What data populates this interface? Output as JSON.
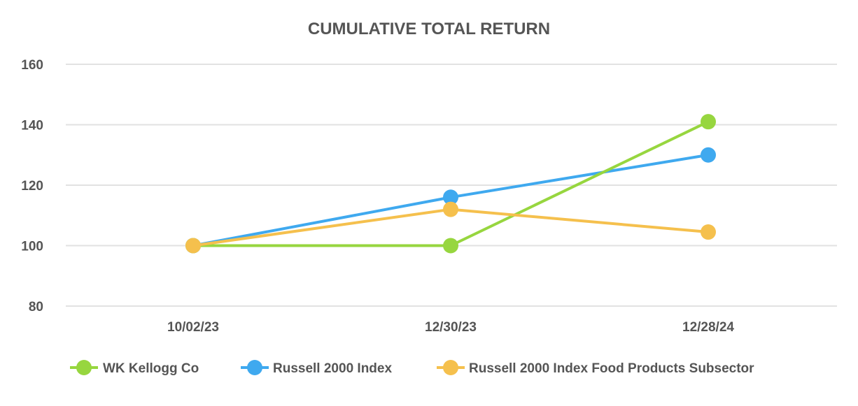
{
  "chart_data": {
    "type": "line",
    "title": "CUMULATIVE TOTAL RETURN",
    "xlabel": "",
    "ylabel": "",
    "categories": [
      "10/02/23",
      "12/30/23",
      "12/28/24"
    ],
    "yticks": [
      "80",
      "100",
      "120",
      "140",
      "160"
    ],
    "ylim": [
      80,
      160
    ],
    "grid": true,
    "legend_position": "bottom",
    "series": [
      {
        "name": "WK Kellogg Co",
        "color": "#97d63f",
        "values": [
          100,
          100,
          141
        ]
      },
      {
        "name": "Russell 2000 Index",
        "color": "#3fa9ef",
        "values": [
          100,
          116,
          130
        ]
      },
      {
        "name": "Russell 2000 Index Food Products Subsector",
        "color": "#f5c04d",
        "values": [
          100,
          112,
          104.5
        ]
      }
    ]
  }
}
